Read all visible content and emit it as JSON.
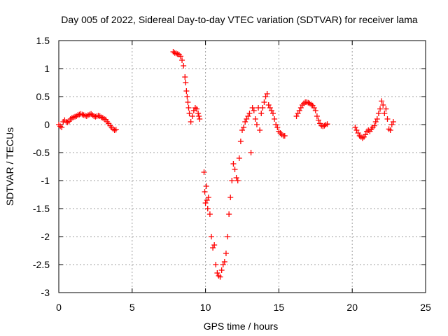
{
  "chart_data": {
    "type": "scatter",
    "title": "Day 005 of 2022, Sidereal Day-to-day VTEC variation (SDTVAR) for receiver lama",
    "xlabel": "GPS time / hours",
    "ylabel": "SDTVAR / TECUs",
    "xlim": [
      0,
      25
    ],
    "ylim": [
      -3,
      1.5
    ],
    "xticks": [
      0,
      5,
      10,
      15,
      20,
      25
    ],
    "xtick_labels": [
      "0",
      "5",
      "10",
      "15",
      "20",
      "25"
    ],
    "yticks": [
      -3,
      -2.5,
      -2,
      -1.5,
      -1,
      -0.5,
      0,
      0.5,
      1,
      1.5
    ],
    "ytick_labels": [
      "-3",
      "-2.5",
      "-2",
      "-1.5",
      "-1",
      "-0.5",
      "0",
      "0.5",
      "1",
      "1.5"
    ],
    "grid": true,
    "marker": "plus",
    "color": "#ff0000",
    "series": [
      {
        "name": "segment-1",
        "x": [
          0.0,
          0.1,
          0.2,
          0.3,
          0.4,
          0.5,
          0.6,
          0.7,
          0.8,
          0.9,
          1.0,
          1.1,
          1.2,
          1.3,
          1.4,
          1.5,
          1.6,
          1.7,
          1.8,
          1.9,
          2.0,
          2.1,
          2.2,
          2.3,
          2.4,
          2.5,
          2.6,
          2.7,
          2.8,
          2.9,
          3.0,
          3.1,
          3.2,
          3.3,
          3.4,
          3.5,
          3.6,
          3.7,
          3.8,
          3.9
        ],
        "y": [
          0.0,
          -0.03,
          -0.05,
          0.05,
          0.08,
          0.05,
          0.04,
          0.06,
          0.1,
          0.12,
          0.13,
          0.14,
          0.15,
          0.17,
          0.18,
          0.19,
          0.18,
          0.17,
          0.16,
          0.15,
          0.17,
          0.18,
          0.19,
          0.17,
          0.15,
          0.14,
          0.15,
          0.16,
          0.15,
          0.13,
          0.12,
          0.1,
          0.09,
          0.05,
          0.02,
          -0.02,
          -0.05,
          -0.08,
          -0.1,
          -0.09
        ]
      },
      {
        "name": "segment-2",
        "x": [
          7.8,
          7.9,
          8.0,
          8.1,
          8.2,
          8.3,
          8.4,
          8.5,
          8.6,
          8.65,
          8.7,
          8.75,
          8.8,
          8.85,
          8.9,
          9.0,
          9.1,
          9.2,
          9.3,
          9.4,
          9.5,
          9.55,
          9.6
        ],
        "y": [
          1.3,
          1.28,
          1.27,
          1.26,
          1.25,
          1.22,
          1.15,
          1.05,
          0.85,
          0.75,
          0.6,
          0.5,
          0.4,
          0.3,
          0.2,
          0.05,
          0.15,
          0.25,
          0.3,
          0.28,
          0.2,
          0.15,
          0.1
        ]
      },
      {
        "name": "segment-3",
        "x": [
          9.9,
          9.95,
          10.0,
          10.05,
          10.1,
          10.15,
          10.2,
          10.3,
          10.4,
          10.5,
          10.6,
          10.7,
          10.8,
          10.9,
          11.0,
          11.1,
          11.2,
          11.3,
          11.4,
          11.5,
          11.6,
          11.7,
          11.8,
          11.9,
          12.0,
          12.1,
          12.2,
          12.3,
          12.4,
          12.5,
          12.6,
          12.7,
          12.8,
          12.9,
          13.0,
          13.1,
          13.2,
          13.3,
          13.4,
          13.5,
          13.6,
          13.7,
          13.8,
          13.9,
          14.0,
          14.1,
          14.2,
          14.3,
          14.4,
          14.5,
          14.6,
          14.7,
          14.8,
          14.9,
          15.0,
          15.1,
          15.2,
          15.3,
          15.4
        ],
        "y": [
          -0.85,
          -1.2,
          -1.4,
          -1.1,
          -1.35,
          -1.5,
          -1.3,
          -1.6,
          -2.0,
          -2.2,
          -2.15,
          -2.5,
          -2.65,
          -2.7,
          -2.72,
          -2.6,
          -2.5,
          -2.45,
          -2.3,
          -2.0,
          -1.6,
          -1.3,
          -1.0,
          -0.7,
          -0.8,
          -0.95,
          -1.0,
          -0.6,
          -0.3,
          -0.1,
          -0.05,
          0.05,
          0.1,
          0.15,
          0.2,
          -0.5,
          0.3,
          0.25,
          0.1,
          0.0,
          0.3,
          -0.1,
          0.2,
          0.3,
          0.4,
          0.5,
          0.55,
          0.35,
          0.3,
          0.25,
          0.2,
          0.1,
          0.0,
          -0.05,
          -0.12,
          -0.15,
          -0.18,
          -0.2,
          -0.2
        ]
      },
      {
        "name": "segment-4",
        "x": [
          16.2,
          16.3,
          16.4,
          16.5,
          16.6,
          16.7,
          16.8,
          16.9,
          17.0,
          17.1,
          17.2,
          17.3,
          17.4,
          17.5,
          17.6,
          17.7,
          17.8,
          17.9,
          18.0,
          18.1,
          18.2,
          18.3
        ],
        "y": [
          0.15,
          0.2,
          0.25,
          0.3,
          0.35,
          0.38,
          0.4,
          0.4,
          0.39,
          0.38,
          0.36,
          0.34,
          0.3,
          0.25,
          0.15,
          0.08,
          0.02,
          -0.02,
          -0.03,
          -0.02,
          0.0,
          0.01
        ]
      },
      {
        "name": "segment-5",
        "x": [
          20.2,
          20.3,
          20.4,
          20.5,
          20.6,
          20.7,
          20.8,
          20.9,
          21.0,
          21.1,
          21.2,
          21.3,
          21.4,
          21.5,
          21.6,
          21.7,
          21.8,
          21.9,
          22.0,
          22.1,
          22.2,
          22.3,
          22.4,
          22.5,
          22.6,
          22.7,
          22.8
        ],
        "y": [
          -0.05,
          -0.1,
          -0.15,
          -0.2,
          -0.22,
          -0.24,
          -0.22,
          -0.18,
          -0.12,
          -0.1,
          -0.12,
          -0.08,
          -0.05,
          -0.02,
          0.05,
          0.1,
          0.2,
          0.28,
          0.42,
          0.35,
          0.2,
          0.28,
          0.1,
          -0.08,
          -0.1,
          0.0,
          0.05
        ]
      }
    ]
  }
}
